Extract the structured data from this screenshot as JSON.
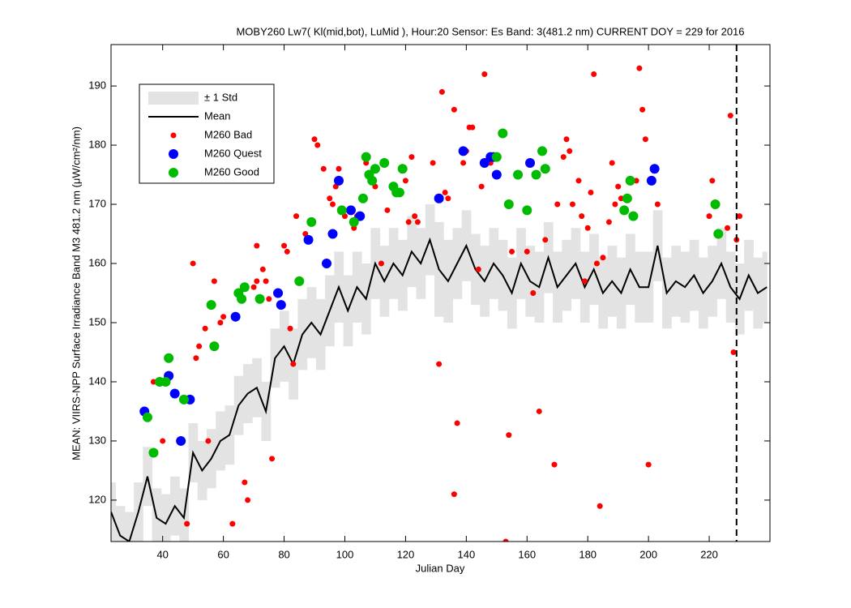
{
  "chart_data": {
    "type": "scatter",
    "title": "MOBY260   Lw7( Kl(mid,bot), LuMid ),   Hour:20 Sensor: Es Band: 3(481.2 nm)   CURRENT DOY = 229 for 2016",
    "x_label": "Julian Day",
    "y_label": "MEAN: VIIRS-NPP Surface Irradiance Band M3 481.2 nm (μW/cm²/nm)",
    "xlim": [
      23,
      240
    ],
    "ylim": [
      113,
      197
    ],
    "xticks": [
      40,
      60,
      80,
      100,
      120,
      140,
      160,
      180,
      200,
      220
    ],
    "yticks": [
      120,
      130,
      140,
      150,
      160,
      170,
      180,
      190
    ],
    "current_day": 229,
    "legend": "upper left",
    "band": {
      "name": "± 1 Std",
      "color": "#e3e3e3"
    },
    "mean": {
      "name": "Mean",
      "color": "#000000",
      "x": [
        23,
        26,
        29,
        32,
        35,
        38,
        41,
        44,
        47,
        50,
        53,
        56,
        59,
        62,
        65,
        68,
        71,
        74,
        77,
        80,
        83,
        86,
        89,
        92,
        95,
        98,
        101,
        104,
        107,
        110,
        113,
        116,
        119,
        122,
        125,
        128,
        131,
        134,
        137,
        140,
        143,
        146,
        149,
        152,
        155,
        158,
        161,
        164,
        167,
        170,
        173,
        176,
        179,
        182,
        185,
        188,
        191,
        194,
        197,
        200,
        203,
        206,
        209,
        212,
        215,
        218,
        221,
        224,
        227,
        230,
        233,
        236,
        239
      ],
      "values": [
        118,
        114,
        113,
        118,
        124,
        117,
        116,
        119,
        117,
        128,
        125,
        127,
        130,
        131,
        136,
        138,
        139,
        135,
        144,
        146,
        143,
        148,
        150,
        148,
        152,
        156,
        152,
        156,
        154,
        160,
        157,
        160,
        158,
        162,
        160,
        164,
        159,
        157,
        160,
        163,
        159,
        157,
        160,
        158,
        155,
        160,
        157,
        156,
        161,
        156,
        158,
        160,
        156,
        159,
        155,
        157,
        155,
        159,
        156,
        156,
        163,
        155,
        157,
        156,
        158,
        155,
        157,
        160,
        156,
        154,
        158,
        155,
        156
      ],
      "std": [
        5,
        5,
        5,
        5,
        5,
        5,
        5,
        5,
        5,
        5,
        5,
        5,
        5,
        5,
        5,
        5,
        5,
        5,
        5,
        6,
        6,
        6,
        6,
        6,
        6,
        6,
        6,
        6,
        6,
        6,
        6,
        6,
        6,
        6,
        6,
        6,
        8,
        7,
        6,
        6,
        6,
        6,
        6,
        6,
        6,
        6,
        6,
        6,
        6,
        6,
        6,
        6,
        6,
        6,
        6,
        6,
        6,
        6,
        6,
        6,
        6,
        6,
        6,
        6,
        6,
        6,
        6,
        6,
        6,
        6,
        6,
        6,
        6
      ]
    },
    "series": [
      {
        "name": "M260 Bad",
        "color": "#ff0000",
        "x": [
          37,
          40,
          48,
          50,
          51,
          52,
          54,
          55,
          57,
          59,
          60,
          63,
          67,
          68,
          70,
          71,
          71,
          73,
          74,
          75,
          76,
          80,
          81,
          82,
          83,
          84,
          87,
          90,
          91,
          93,
          95,
          96,
          97,
          98,
          100,
          103,
          104,
          107,
          110,
          112,
          114,
          117,
          120,
          121,
          122,
          123,
          124,
          129,
          131,
          132,
          133,
          134,
          136,
          137,
          136,
          139,
          140,
          141,
          142,
          144,
          145,
          146,
          148,
          150,
          153,
          154,
          155,
          157,
          160,
          162,
          164,
          166,
          169,
          170,
          172,
          173,
          174,
          175,
          177,
          178,
          179,
          180,
          181,
          182,
          183,
          184,
          185,
          187,
          188,
          189,
          190,
          191,
          193,
          196,
          197,
          198,
          199,
          200,
          203,
          220,
          221,
          226,
          227,
          228,
          229,
          230
        ],
        "values": [
          140,
          130,
          116,
          160,
          144,
          146,
          149,
          130,
          157,
          150,
          151,
          116,
          123,
          120,
          156,
          157,
          163,
          159,
          157,
          154,
          127,
          163,
          162,
          149,
          143,
          168,
          165,
          181,
          180,
          176,
          171,
          170,
          173,
          176,
          168,
          166,
          168,
          177,
          173,
          160,
          169,
          172,
          174,
          167,
          178,
          168,
          167,
          177,
          143,
          189,
          172,
          171,
          186,
          133,
          121,
          177,
          179,
          183,
          183,
          159,
          173,
          192,
          177,
          178,
          113,
          131,
          162,
          175,
          162,
          155,
          135,
          164,
          126,
          170,
          178,
          181,
          179,
          170,
          174,
          168,
          157,
          166,
          172,
          192,
          160,
          119,
          161,
          167,
          177,
          170,
          173,
          171,
          171,
          174,
          193,
          186,
          181,
          126,
          170,
          168,
          174,
          166,
          185,
          145,
          164,
          168
        ]
      },
      {
        "name": "M260 Quest",
        "color": "#0000ff",
        "x": [
          34,
          42,
          44,
          46,
          49,
          64,
          78,
          79,
          88,
          94,
          96,
          98,
          102,
          105,
          131,
          139,
          146,
          148,
          149,
          150,
          161,
          201,
          202
        ],
        "values": [
          135,
          141,
          138,
          130,
          137,
          151,
          155,
          153,
          164,
          160,
          165,
          174,
          169,
          168,
          171,
          179,
          177,
          178,
          178,
          175,
          177,
          174,
          176
        ]
      },
      {
        "name": "M260 Good",
        "color": "#00bb00",
        "x": [
          35,
          37,
          39,
          41,
          42,
          47,
          56,
          57,
          65,
          66,
          67,
          72,
          85,
          89,
          99,
          103,
          106,
          107,
          108,
          109,
          110,
          113,
          116,
          117,
          118,
          119,
          150,
          152,
          154,
          157,
          160,
          163,
          165,
          166,
          192,
          193,
          194,
          195,
          222,
          223
        ],
        "values": [
          134,
          128,
          140,
          140,
          144,
          137,
          153,
          146,
          155,
          154,
          156,
          154,
          157,
          167,
          169,
          167,
          171,
          178,
          175,
          174,
          176,
          177,
          173,
          172,
          172,
          176,
          178,
          182,
          170,
          175,
          169,
          175,
          179,
          176,
          169,
          171,
          174,
          168,
          170,
          165
        ]
      }
    ]
  }
}
